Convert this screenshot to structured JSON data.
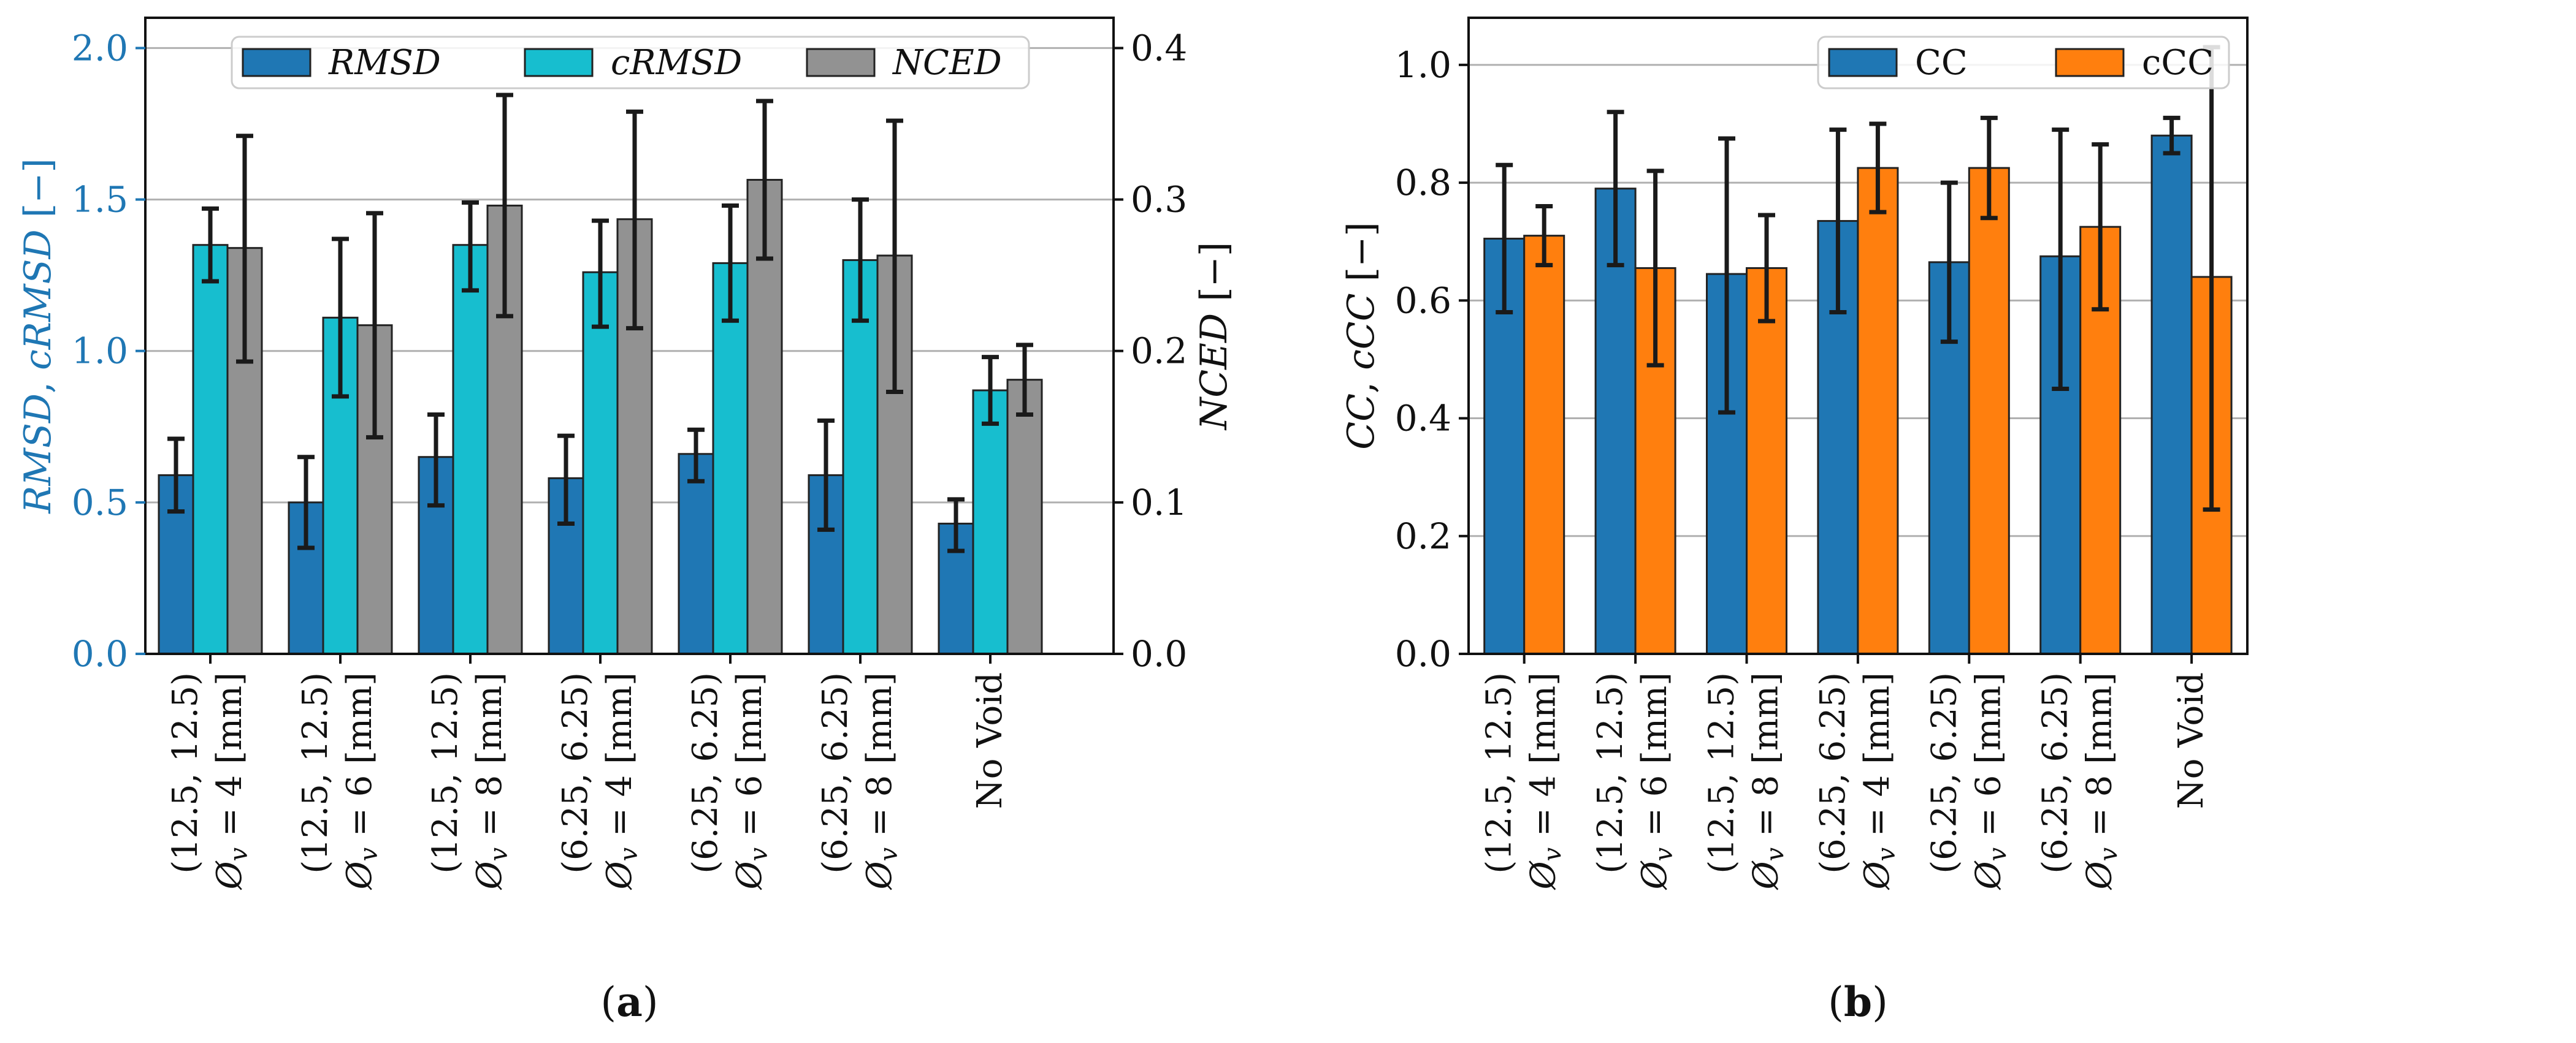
{
  "chart_data": [
    {
      "type": "bar",
      "panel": "(a)",
      "panel_letter": "a",
      "categories": [
        [
          "(12.5, 12.5)",
          "Ø",
          "v",
          " = 4 [mm]"
        ],
        [
          "(12.5, 12.5)",
          "Ø",
          "v",
          " = 6 [mm]"
        ],
        [
          "(12.5, 12.5)",
          "Ø",
          "v",
          " = 8 [mm]"
        ],
        [
          "(6.25, 6.25)",
          "Ø",
          "v",
          " = 4 [mm]"
        ],
        [
          "(6.25, 6.25)",
          "Ø",
          "v",
          " = 6 [mm]"
        ],
        [
          "(6.25, 6.25)",
          "Ø",
          "v",
          " = 8 [mm]"
        ],
        [
          "No Void"
        ]
      ],
      "ylabel_left_parts": [
        "RMSD",
        ", ",
        "cRMSD",
        " [−]"
      ],
      "ylabel_right_parts": [
        "NCED",
        " [−]"
      ],
      "ylim_left": [
        0,
        2.1
      ],
      "ylim_right": [
        0,
        0.42
      ],
      "yticks_left": [
        "0.0",
        "0.5",
        "1.0",
        "1.5",
        "2.0"
      ],
      "yticks_right": [
        "0.0",
        "0.1",
        "0.2",
        "0.3",
        "0.4"
      ],
      "grid": "horizontal",
      "legend_position": "top-center",
      "series": [
        {
          "name": "RMSD",
          "axis": "left",
          "color": "#1f77b4",
          "values": [
            0.59,
            0.5,
            0.65,
            0.58,
            0.66,
            0.59,
            0.43
          ],
          "errors_low": [
            0.47,
            0.35,
            0.49,
            0.43,
            0.57,
            0.41,
            0.34
          ],
          "errors_high": [
            0.71,
            0.65,
            0.79,
            0.72,
            0.74,
            0.77,
            0.51
          ]
        },
        {
          "name": "cRMSD",
          "axis": "left",
          "color": "#17becf",
          "values": [
            1.35,
            1.11,
            1.35,
            1.26,
            1.29,
            1.3,
            0.87
          ],
          "errors_low": [
            1.23,
            0.85,
            1.2,
            1.08,
            1.1,
            1.1,
            0.76
          ],
          "errors_high": [
            1.47,
            1.37,
            1.49,
            1.43,
            1.48,
            1.5,
            0.98
          ]
        },
        {
          "name": "NCED",
          "axis": "right",
          "color": "#929292",
          "values": [
            0.268,
            0.217,
            0.296,
            0.287,
            0.313,
            0.263,
            0.181
          ],
          "errors_low": [
            0.193,
            0.143,
            0.223,
            0.215,
            0.261,
            0.173,
            0.158
          ],
          "errors_high": [
            0.342,
            0.291,
            0.369,
            0.358,
            0.365,
            0.352,
            0.204
          ]
        }
      ]
    },
    {
      "type": "bar",
      "panel": "(b)",
      "panel_letter": "b",
      "categories": [
        [
          "(12.5, 12.5)",
          "Ø",
          "v",
          " = 4 [mm]"
        ],
        [
          "(12.5, 12.5)",
          "Ø",
          "v",
          " = 6 [mm]"
        ],
        [
          "(12.5, 12.5)",
          "Ø",
          "v",
          " = 8 [mm]"
        ],
        [
          "(6.25, 6.25)",
          "Ø",
          "v",
          " = 4 [mm]"
        ],
        [
          "(6.25, 6.25)",
          "Ø",
          "v",
          " = 6 [mm]"
        ],
        [
          "(6.25, 6.25)",
          "Ø",
          "v",
          " = 8 [mm]"
        ],
        [
          "No Void"
        ]
      ],
      "ylabel_parts": [
        "CC",
        ", ",
        "cCC",
        " [−]"
      ],
      "ylim": [
        0,
        1.08
      ],
      "yticks": [
        "0.0",
        "0.2",
        "0.4",
        "0.6",
        "0.8",
        "1.0"
      ],
      "grid": "horizontal",
      "legend_position": "top-center",
      "series": [
        {
          "name": "CC",
          "color": "#1f77b4",
          "values": [
            0.705,
            0.79,
            0.645,
            0.735,
            0.665,
            0.675,
            0.88
          ],
          "errors_low": [
            0.58,
            0.66,
            0.41,
            0.58,
            0.53,
            0.45,
            0.85
          ],
          "errors_high": [
            0.83,
            0.92,
            0.875,
            0.89,
            0.8,
            0.89,
            0.91
          ]
        },
        {
          "name": "cCC",
          "color": "#ff7f0e",
          "values": [
            0.71,
            0.655,
            0.655,
            0.825,
            0.825,
            0.725,
            0.64
          ],
          "errors_low": [
            0.66,
            0.49,
            0.565,
            0.75,
            0.74,
            0.585,
            0.245
          ],
          "errors_high": [
            0.76,
            0.82,
            0.745,
            0.9,
            0.91,
            0.865,
            1.03
          ]
        }
      ]
    }
  ]
}
